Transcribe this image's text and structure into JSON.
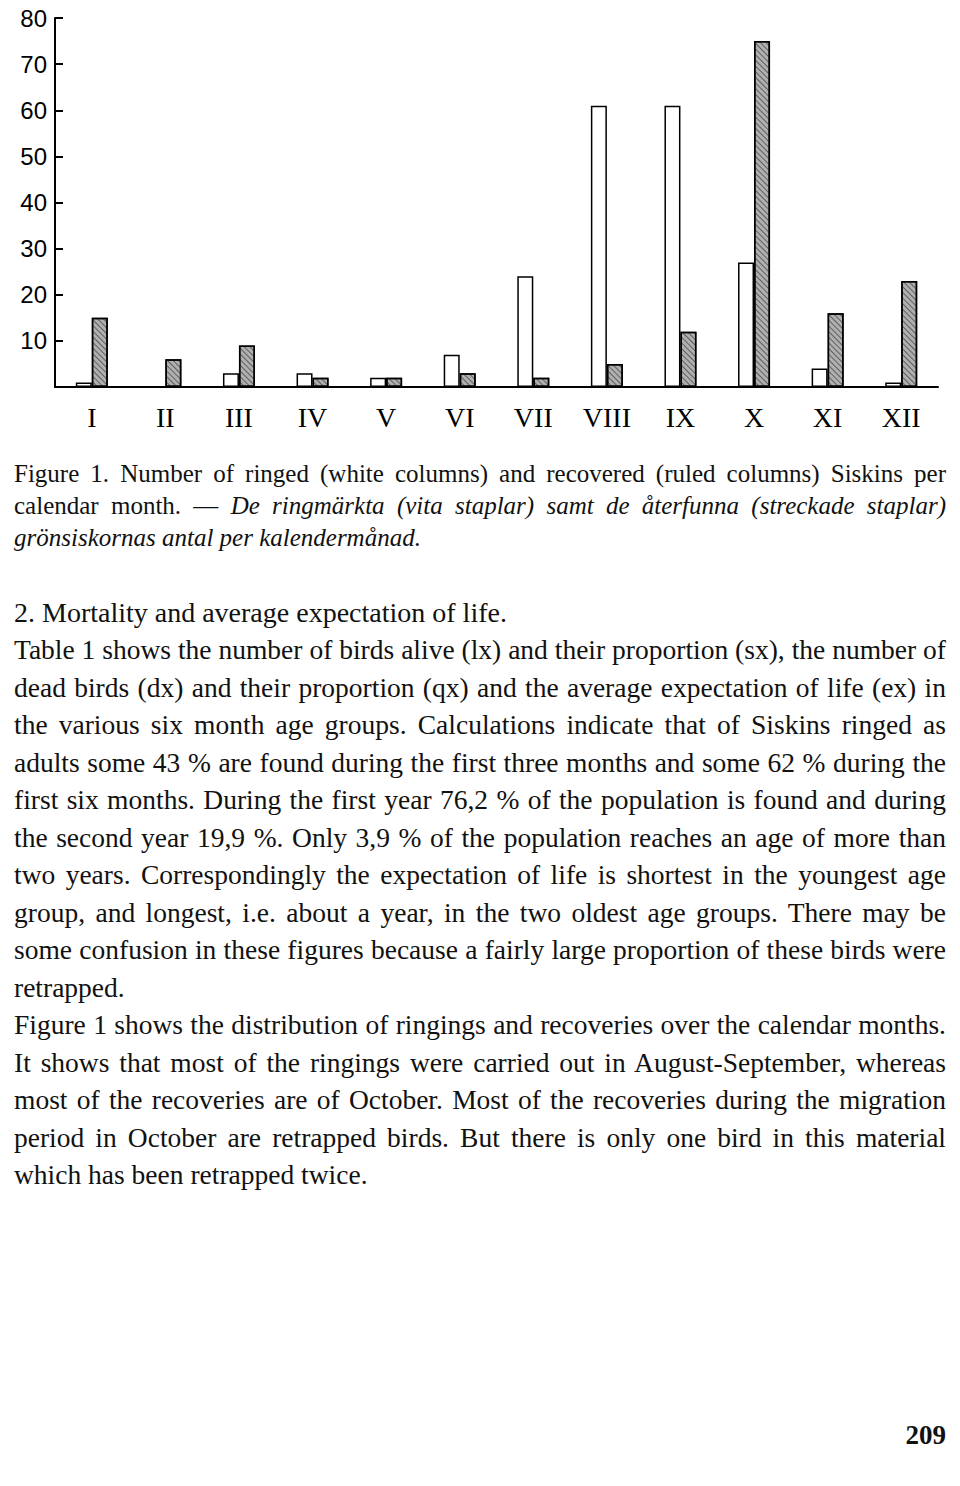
{
  "chart_data": {
    "type": "bar",
    "categories": [
      "I",
      "II",
      "III",
      "IV",
      "V",
      "VI",
      "VII",
      "VIII",
      "IX",
      "X",
      "XI",
      "XII"
    ],
    "series": [
      {
        "color": "#ffffff",
        "values": [
          1,
          0,
          3,
          3,
          2,
          7,
          24,
          61,
          61,
          27,
          4,
          1
        ]
      },
      {
        "color": "#b0b0b0",
        "values": [
          15,
          6,
          9,
          2,
          2,
          3,
          2,
          5,
          12,
          75,
          16,
          23
        ]
      }
    ],
    "ylim": [
      0,
      80
    ],
    "yticks": [
      10,
      20,
      30,
      40,
      50,
      60,
      70,
      80
    ],
    "grid": false
  },
  "caption": {
    "english": "Figure 1. Number of ringed (white columns) and recovered (ruled columns) Siskins per calendar month. —",
    "swedish": "De ringmärkta (vita staplar) samt de återfunna (streckade staplar) grönsiskornas antal per kalendermånad."
  },
  "heading": "2. Mortality and average expectation of life.",
  "paragraphs": [
    "Table 1 shows the number of birds alive (lx) and their proportion (sx), the number of dead birds (dx) and their proportion (qx) and the average expectation of life (ex) in the various six month age groups. Calculations indicate that of Siskins ringed as adults some 43 % are found during the first three months and some 62 % during the first six months. During the first year 76,2 % of the population is found and during the second year 19,9 %. Only 3,9 % of the population reaches an age of more than two years. Correspondingly the expectation of life is shortest in the youngest age group, and longest, i.e. about a year, in the two oldest age groups. There may be some confusion in these figures because a fairly large proportion of these birds were retrapped.",
    "Figure 1 shows the distribution of ringings and recoveries over the calendar months. It shows that most of the ringings were carried out in August-September, whereas most of the recoveries are of October. Most of the recoveries during the migration period in October are retrapped birds. But there is only one bird in this material which has been retrapped twice."
  ],
  "page_number": "209"
}
